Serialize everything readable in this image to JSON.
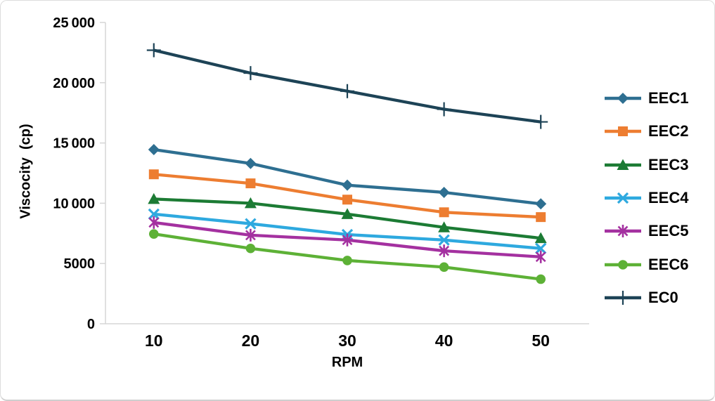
{
  "chart_data": {
    "type": "line",
    "title": "",
    "xlabel": "RPM",
    "ylabel": "Viscocity  (cp)",
    "categories": [
      "10",
      "20",
      "30",
      "40",
      "50"
    ],
    "ylim": [
      0,
      25000
    ],
    "grid": false,
    "legend_position": "right",
    "axis_color": "#D6D6D6",
    "text_color": "#000000",
    "background_color": "#FFFFFF",
    "y_ticks": [
      {
        "value": 0,
        "label": "0"
      },
      {
        "value": 5000,
        "label": "5000"
      },
      {
        "value": 10000,
        "label": "10 000"
      },
      {
        "value": 15000,
        "label": "15 000"
      },
      {
        "value": 20000,
        "label": "20 000"
      },
      {
        "value": 25000,
        "label": "25 000"
      }
    ],
    "series": [
      {
        "name": "EEC1",
        "marker": "diamond",
        "color": "#2E6F91",
        "values": [
          14450,
          13300,
          11500,
          10900,
          9950
        ]
      },
      {
        "name": "EEC2",
        "marker": "square",
        "color": "#ED7D31",
        "values": [
          12400,
          11650,
          10300,
          9250,
          8850
        ]
      },
      {
        "name": "EEC3",
        "marker": "triangle",
        "color": "#1C7B34",
        "values": [
          10350,
          10000,
          9100,
          8000,
          7100
        ]
      },
      {
        "name": "EEC4",
        "marker": "x",
        "color": "#2EA9DF",
        "values": [
          9100,
          8300,
          7400,
          6950,
          6250
        ]
      },
      {
        "name": "EEC5",
        "marker": "asterisk",
        "color": "#A431A0",
        "values": [
          8400,
          7350,
          6950,
          6050,
          5550
        ]
      },
      {
        "name": "EEC6",
        "marker": "circle",
        "color": "#5DB136",
        "values": [
          7450,
          6250,
          5250,
          4700,
          3700
        ]
      },
      {
        "name": "EC0",
        "marker": "plus",
        "color": "#1D4356",
        "values": [
          22700,
          20800,
          19300,
          17800,
          16750
        ]
      }
    ]
  }
}
